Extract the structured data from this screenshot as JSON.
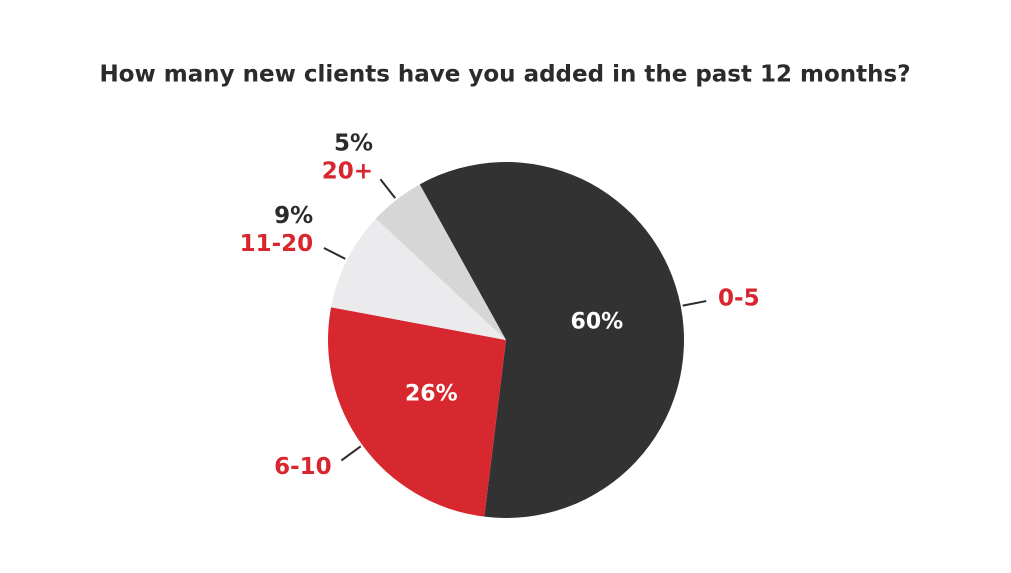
{
  "chart_data": {
    "type": "pie",
    "title": "How many new clients have you added in the past 12 months?",
    "categories": [
      "0-5",
      "6-10",
      "11-20",
      "20+"
    ],
    "values": [
      60,
      26,
      9,
      5
    ],
    "value_labels": [
      "60%",
      "26%",
      "9%",
      "5%"
    ],
    "colors": [
      "#323232",
      "#d8282f",
      "#ebebed",
      "#d6d6d6"
    ]
  }
}
